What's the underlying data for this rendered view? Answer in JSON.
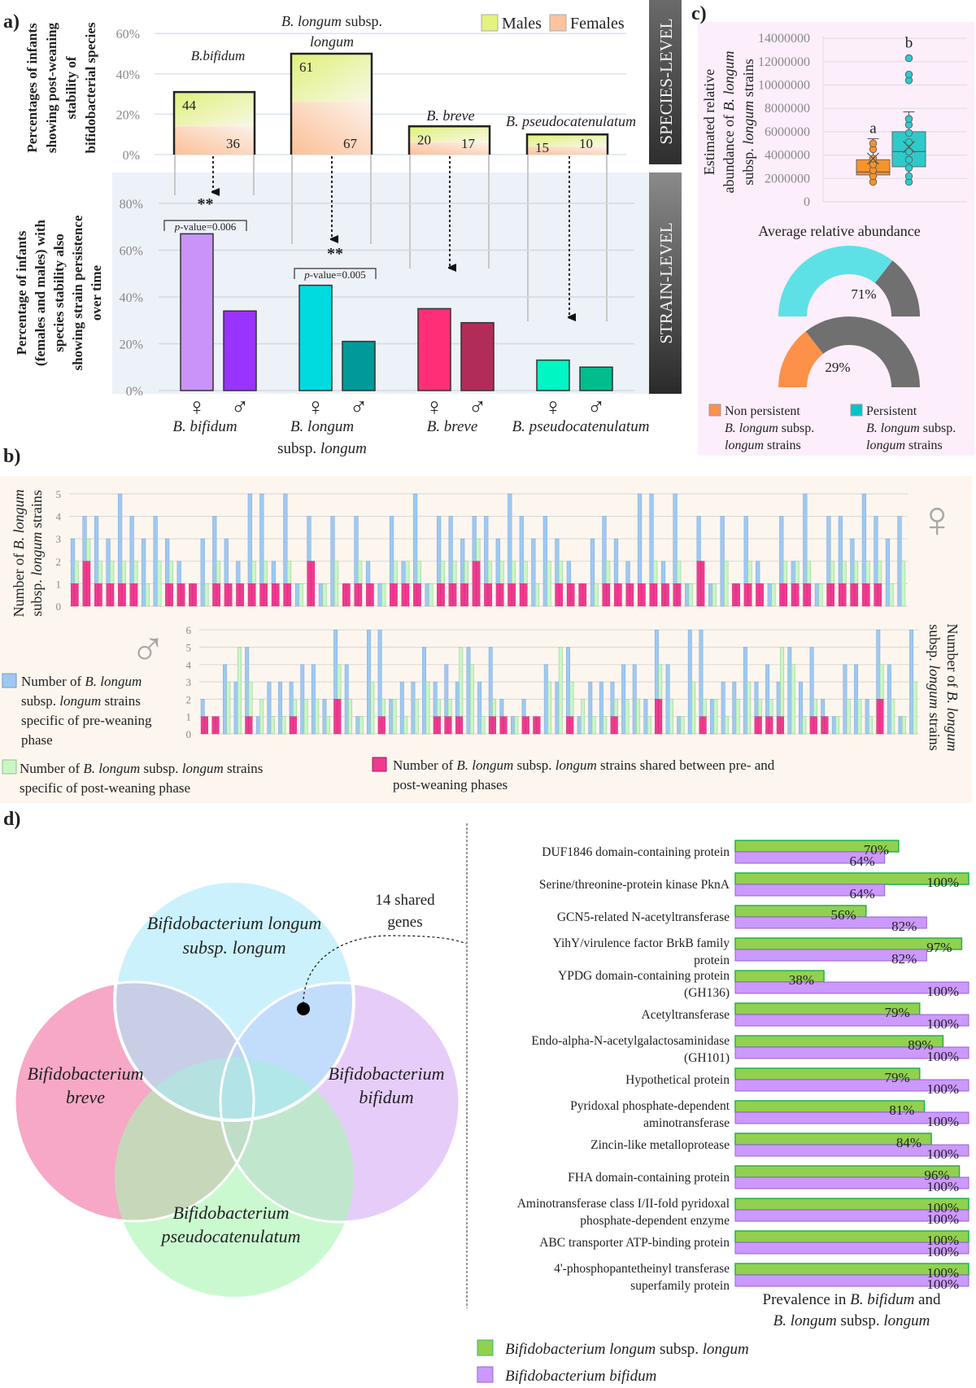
{
  "panel_a": {
    "label": "a)",
    "species_axis_title": [
      "Percentages of infants",
      "showing post-weaning",
      "stability of",
      "bifidobacterial species"
    ],
    "strain_axis_title": [
      "Percentage of infants",
      "(females and males) with",
      "species stability also",
      "showing  strain persistence",
      "over time"
    ],
    "species_ticks": [
      "0%",
      "20%",
      "40%",
      "60%"
    ],
    "strain_ticks": [
      "0%",
      "20%",
      "40%",
      "60%",
      "80%"
    ],
    "legend": {
      "males": "Males",
      "females": "Females"
    },
    "band_species": "SPECIES-LEVEL",
    "band_strain": "STRAIN-LEVEL",
    "female_symbol": "♀",
    "male_symbol": "♂",
    "top_labels": {
      "bifidum": "B.bifidum",
      "longum_a": "B. longum",
      "longum_b": " subsp.",
      "longum_c": "longum",
      "breve": "B. breve",
      "pseudo": "B. pseudocatenulatum"
    },
    "bottom_labels": {
      "bifidum": "B. bifidum",
      "longum_a": "B. longum",
      "longum_b": "subsp. ",
      "longum_c": "longum",
      "breve": "B. breve",
      "pseudo": "B. pseudocatenulatum"
    },
    "significance": [
      {
        "stars": "**",
        "p_italic": "p",
        "p_text": "-value=0.006"
      },
      {
        "stars": "**",
        "p_italic": "p",
        "p_text": "-value=0.005"
      }
    ]
  },
  "panel_b": {
    "label": "b)",
    "axis_title_l1a": "Number of ",
    "axis_title_l1b": "B. longum",
    "axis_title_l2a": "subsp. ",
    "axis_title_l2b": "longum",
    "axis_title_l2c": " strains",
    "female_ticks": [
      "0",
      "1",
      "2",
      "3",
      "4",
      "5"
    ],
    "male_ticks": [
      "0",
      "1",
      "2",
      "3",
      "4",
      "5",
      "6"
    ],
    "female_symbol": "♀",
    "male_symbol": "♂",
    "legend_pre": [
      "Number of ",
      "B. longum",
      "subsp. ",
      "longum",
      " strains",
      "specific of pre-weaning",
      "phase"
    ],
    "legend_post": [
      "Number of ",
      "B. longum",
      " subsp. ",
      "longum",
      " strains",
      "specific of post-weaning phase"
    ],
    "legend_shared": [
      "Number of ",
      "B. longum",
      " subsp. ",
      "longum",
      " strains shared between pre- and",
      "post-weaning phases"
    ],
    "colors": {
      "pre": "#9ec9f3",
      "post": "#caf6c6",
      "shared": "#f03a90"
    }
  },
  "panel_c": {
    "label": "c)",
    "axis_title": [
      "Estimated relative",
      "abundance of ",
      "B. longum",
      "subsp. ",
      "longum",
      " strains"
    ],
    "ticks": [
      "0",
      "2000000",
      "4000000",
      "6000000",
      "8000000",
      "10000000",
      "12000000",
      "14000000"
    ],
    "xlabel": "Average relative abundance",
    "letters": [
      "a",
      "b"
    ],
    "legend_non": [
      "Non persistent",
      "B. longum",
      " subsp.",
      "longum",
      " strains"
    ],
    "legend_per": [
      "Persistent",
      "B. longum",
      " subsp.",
      "longum",
      " strains"
    ]
  },
  "panel_d": {
    "label": "d)",
    "venn": {
      "longum": [
        "Bifidobacterium longum",
        "subsp. ",
        "longum"
      ],
      "breve": [
        "Bifidobacterium",
        "breve"
      ],
      "bifidum": [
        "Bifidobacterium",
        "bifidum"
      ],
      "pseudo": [
        "Bifidobacterium",
        "pseudocatenulatum"
      ],
      "shared_note": [
        "14 shared",
        "genes"
      ],
      "colors": {
        "longum": "#a9e7fb",
        "breve": "#f590b6",
        "bifidum": "#dcbaf6",
        "pseudo": "#a9f5b3"
      }
    },
    "axis_title": [
      "Prevalence in ",
      "B. bifidum",
      " and",
      "B. longum",
      " subsp. ",
      "longum"
    ],
    "legend": {
      "longum_a": "Bifidobacterium  longum",
      "longum_b": " subsp. ",
      "longum_c": "longum",
      "bifidum": "Bifidobacterium bifidum"
    }
  },
  "chart_data": [
    {
      "id": "species_stability",
      "type": "bar",
      "stacked": true,
      "categories": [
        "B. bifidum",
        "B. longum subsp. longum",
        "B. breve",
        "B. pseudocatenulatum"
      ],
      "total_pct": [
        31,
        50,
        14,
        10
      ],
      "female_segment_pct": [
        14,
        26,
        6,
        4
      ],
      "male_labels": [
        "44",
        "61",
        "20",
        "15"
      ],
      "female_labels": [
        "36",
        "67",
        "17",
        "10"
      ],
      "ylim": [
        0,
        60
      ],
      "legend": [
        "Males",
        "Females"
      ],
      "legend_placement": "top-right",
      "colors": {
        "males": "#e4f27e",
        "females": "#fbc49c"
      }
    },
    {
      "id": "strain_persistence",
      "type": "bar",
      "categories": [
        "B. bifidum",
        "B. longum subsp. longum",
        "B. breve",
        "B. pseudocatenulatum"
      ],
      "series": [
        {
          "name": "Females",
          "values": [
            67,
            45,
            35,
            13
          ]
        },
        {
          "name": "Males",
          "values": [
            34,
            21,
            29,
            10
          ]
        }
      ],
      "colors": {
        "female": [
          "#c993fa",
          "#00dbe0",
          "#ff2e77",
          "#00f6c3"
        ],
        "male": [
          "#9933ff",
          "#009a9a",
          "#b22c5a",
          "#00bd8e"
        ]
      },
      "ylim": [
        0,
        80
      ],
      "significance": [
        {
          "category": "B. bifidum",
          "p_value": 0.006
        },
        {
          "category": "B. longum subsp. longum",
          "p_value": 0.005
        }
      ]
    },
    {
      "id": "abundance_boxplot",
      "type": "box",
      "ylim": [
        0,
        14000000
      ],
      "groups": [
        {
          "name": "Non persistent",
          "color": "#f7932c",
          "q1": 2300000,
          "median": 2550000,
          "q3": 3600000,
          "whisker_low": 1700000,
          "whisker_high": 5400000,
          "mean": 3700000,
          "points": [
            1700000,
            2200000,
            2700000,
            3200000,
            3700000,
            4500000,
            5000000
          ],
          "letter": "a"
        },
        {
          "name": "Persistent",
          "color": "#2ecaca",
          "q1": 3000000,
          "median": 4300000,
          "q3": 6000000,
          "whisker_low": 1700000,
          "whisker_high": 7700000,
          "mean": 4700000,
          "points": [
            1700000,
            2200000,
            2900000,
            3600000,
            4300000,
            5100000,
            5900000,
            6600000,
            7100000,
            10400000,
            10900000,
            12300000
          ],
          "letter": "b"
        }
      ]
    },
    {
      "id": "abundance_gauges",
      "type": "pie",
      "gauges": [
        {
          "name": "Persistent",
          "value": 71,
          "label": "71%",
          "color": "#5ee1e6"
        },
        {
          "name": "Non persistent",
          "value": 29,
          "label": "29%",
          "color": "#fd914a"
        }
      ],
      "remainder_color": "#707070"
    },
    {
      "id": "strains_females",
      "type": "bar",
      "stacked": true,
      "ylim": [
        0,
        5
      ],
      "groups_L_R_shared": [
        [
          3,
          2,
          1
        ],
        [
          4,
          3,
          2
        ],
        [
          4,
          2,
          1
        ],
        [
          3,
          2,
          1
        ],
        [
          5,
          2,
          1
        ],
        [
          4,
          2,
          1
        ],
        [
          3,
          1,
          0
        ],
        [
          4,
          2,
          0
        ],
        [
          3,
          2,
          1
        ],
        [
          2,
          1,
          1
        ],
        [
          1,
          1,
          1
        ],
        [
          3,
          1,
          0
        ],
        [
          4,
          2,
          1
        ],
        [
          3,
          1,
          1
        ],
        [
          2,
          1,
          1
        ],
        [
          5,
          2,
          1
        ],
        [
          5,
          2,
          1
        ],
        [
          2,
          1,
          1
        ],
        [
          5,
          2,
          1
        ],
        [
          1,
          1,
          0
        ],
        [
          4,
          2,
          2
        ],
        [
          1,
          1,
          0
        ],
        [
          4,
          2,
          0
        ],
        [
          1,
          1,
          1
        ],
        [
          4,
          2,
          1
        ],
        [
          2,
          1,
          1
        ],
        [
          1,
          1,
          0
        ],
        [
          4,
          2,
          1
        ],
        [
          2,
          2,
          1
        ],
        [
          5,
          2,
          1
        ],
        [
          1,
          1,
          0
        ],
        [
          4,
          2,
          1
        ],
        [
          4,
          2,
          1
        ],
        [
          3,
          2,
          1
        ],
        [
          4,
          3,
          2
        ],
        [
          4,
          2,
          1
        ],
        [
          3,
          2,
          1
        ],
        [
          5,
          2,
          1
        ],
        [
          4,
          2,
          1
        ],
        [
          3,
          1,
          0
        ],
        [
          4,
          2,
          0
        ],
        [
          3,
          2,
          1
        ],
        [
          2,
          1,
          1
        ],
        [
          1,
          1,
          1
        ],
        [
          3,
          1,
          0
        ],
        [
          4,
          2,
          1
        ],
        [
          3,
          1,
          1
        ],
        [
          2,
          1,
          1
        ],
        [
          5,
          1,
          1
        ],
        [
          5,
          2,
          1
        ],
        [
          2,
          1,
          1
        ],
        [
          5,
          2,
          1
        ],
        [
          1,
          1,
          0
        ],
        [
          4,
          2,
          2
        ],
        [
          1,
          1,
          0
        ],
        [
          4,
          2,
          0
        ],
        [
          1,
          1,
          1
        ],
        [
          4,
          2,
          1
        ],
        [
          2,
          1,
          1
        ],
        [
          1,
          1,
          0
        ],
        [
          4,
          2,
          1
        ],
        [
          2,
          2,
          1
        ],
        [
          5,
          2,
          1
        ],
        [
          1,
          1,
          0
        ],
        [
          4,
          2,
          1
        ],
        [
          4,
          2,
          1
        ],
        [
          3,
          2,
          1
        ],
        [
          5,
          2,
          1
        ],
        [
          4,
          2,
          1
        ],
        [
          3,
          1,
          0
        ],
        [
          4,
          2,
          0
        ]
      ]
    },
    {
      "id": "strains_males",
      "type": "bar",
      "stacked": true,
      "ylim": [
        0,
        6
      ],
      "groups_L_R_shared": [
        [
          2,
          1,
          1
        ],
        [
          1,
          1,
          1
        ],
        [
          4,
          3,
          0
        ],
        [
          3,
          5,
          0
        ],
        [
          5,
          3,
          1
        ],
        [
          1,
          2,
          0
        ],
        [
          3,
          1,
          0
        ],
        [
          3,
          1,
          0
        ],
        [
          3,
          2,
          1
        ],
        [
          4,
          2,
          0
        ],
        [
          4,
          2,
          0
        ],
        [
          2,
          1,
          0
        ],
        [
          6,
          4,
          2
        ],
        [
          4,
          2,
          0
        ],
        [
          1,
          1,
          0
        ],
        [
          6,
          3,
          0
        ],
        [
          6,
          2,
          1
        ],
        [
          2,
          2,
          0
        ],
        [
          3,
          1,
          0
        ],
        [
          3,
          2,
          0
        ],
        [
          5,
          3,
          0
        ],
        [
          3,
          2,
          1
        ],
        [
          4,
          2,
          1
        ],
        [
          3,
          5,
          1
        ],
        [
          5,
          4,
          0
        ],
        [
          3,
          1,
          0
        ],
        [
          5,
          2,
          1
        ],
        [
          2,
          1,
          1
        ],
        [
          1,
          1,
          0
        ],
        [
          2,
          1,
          1
        ],
        [
          1,
          1,
          1
        ],
        [
          4,
          3,
          0
        ],
        [
          3,
          5,
          0
        ],
        [
          5,
          3,
          1
        ],
        [
          1,
          2,
          0
        ],
        [
          3,
          1,
          0
        ],
        [
          3,
          1,
          0
        ],
        [
          3,
          2,
          1
        ],
        [
          4,
          2,
          0
        ],
        [
          4,
          2,
          0
        ],
        [
          2,
          1,
          0
        ],
        [
          6,
          4,
          2
        ],
        [
          4,
          2,
          0
        ],
        [
          1,
          1,
          0
        ],
        [
          6,
          3,
          0
        ],
        [
          6,
          2,
          1
        ],
        [
          2,
          2,
          0
        ],
        [
          3,
          1,
          0
        ],
        [
          3,
          2,
          0
        ],
        [
          5,
          3,
          0
        ],
        [
          3,
          2,
          1
        ],
        [
          4,
          2,
          1
        ],
        [
          3,
          5,
          1
        ],
        [
          5,
          4,
          0
        ],
        [
          3,
          1,
          0
        ],
        [
          5,
          2,
          1
        ],
        [
          2,
          1,
          1
        ],
        [
          1,
          1,
          0
        ],
        [
          4,
          2,
          0
        ],
        [
          4,
          2,
          0
        ],
        [
          2,
          1,
          0
        ],
        [
          6,
          4,
          2
        ],
        [
          4,
          2,
          0
        ],
        [
          1,
          1,
          0
        ],
        [
          6,
          3,
          0
        ]
      ]
    },
    {
      "id": "shared_gene_prevalence",
      "type": "bar",
      "orientation": "horizontal",
      "categories": [
        [
          "DUF1846 domain-containing protein"
        ],
        [
          "Serine/threonine-protein kinase PknA"
        ],
        [
          "GCN5-related N-acetyltransferase"
        ],
        [
          "YihY/virulence factor BrkB family",
          "protein"
        ],
        [
          "YPDG domain-containing protein",
          "(GH136)"
        ],
        [
          "Acetyltransferase"
        ],
        [
          "Endo-alpha-N-acetylgalactosaminidase",
          "(GH101)"
        ],
        [
          "Hypothetical protein"
        ],
        [
          "Pyridoxal phosphate-dependent",
          "aminotransferase"
        ],
        [
          "Zincin-like metalloprotease"
        ],
        [
          "FHA domain-containing protein"
        ],
        [
          "Aminotransferase class I/II-fold pyridoxal",
          "phosphate-dependent enzyme"
        ],
        [
          "ABC transporter ATP-binding protein"
        ],
        [
          "4'-phosphopantetheinyl transferase",
          "superfamily protein"
        ]
      ],
      "series": [
        {
          "name": "Bifidobacterium longum subsp. longum",
          "color": "#92d050",
          "values": [
            70,
            100,
            56,
            97,
            38,
            79,
            89,
            79,
            81,
            84,
            96,
            100,
            100,
            100
          ],
          "labels": [
            "70%",
            "100%",
            "56%",
            "97%",
            "38%",
            "79%",
            "89%",
            "79%",
            "81%",
            "84%",
            "96%",
            "100%",
            "100%",
            "100%"
          ]
        },
        {
          "name": "Bifidobacterium bifidum",
          "color": "#cc99ff",
          "values": [
            64,
            64,
            82,
            82,
            100,
            100,
            100,
            100,
            100,
            100,
            100,
            100,
            100,
            100
          ],
          "labels": [
            "64%",
            "64%",
            "82%",
            "82%",
            "100%",
            "100%",
            "100%",
            "100%",
            "100%",
            "100%",
            "100%",
            "100%",
            "100%",
            "100%"
          ]
        }
      ],
      "xlim": [
        0,
        100
      ]
    }
  ]
}
